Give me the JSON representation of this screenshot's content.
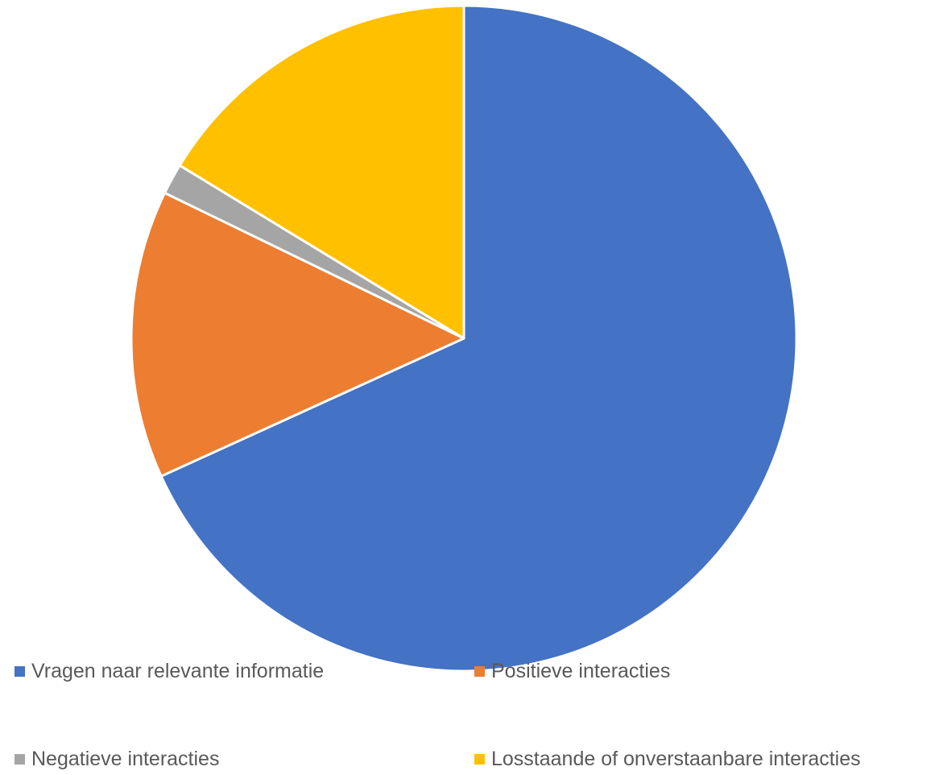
{
  "chart_data": {
    "type": "pie",
    "title": "",
    "start_angle_deg": 0,
    "direction": "clockwise",
    "slices": [
      {
        "label": "Vragen naar relevante informatie",
        "value": 68.2,
        "color": "#4472C4"
      },
      {
        "label": "Positieve interacties",
        "value": 14.0,
        "color": "#ED7D31"
      },
      {
        "label": "Negatieve interacties",
        "value": 1.5,
        "color": "#A5A5A5"
      },
      {
        "label": "Losstaande of onverstaanbare interacties",
        "value": 16.3,
        "color": "#FFC000"
      }
    ],
    "legend_position": "bottom",
    "slice_border_color": "#FFFFFF"
  }
}
